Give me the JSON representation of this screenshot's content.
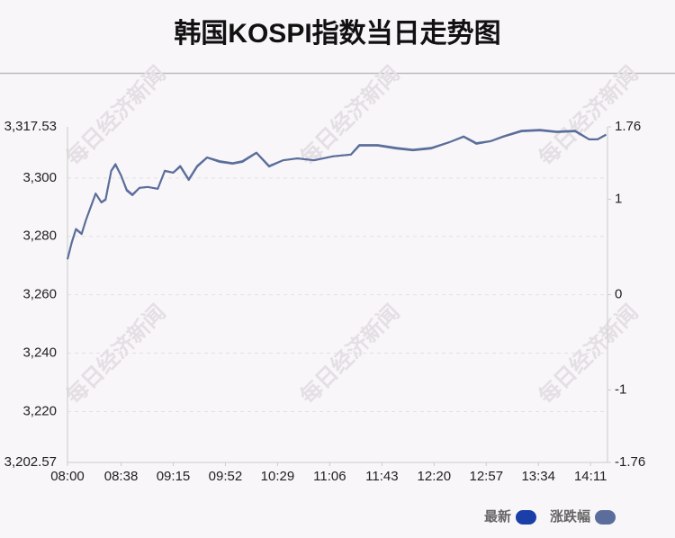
{
  "chart_data": {
    "type": "line",
    "title": "韩国KOSPI指数当日走势图",
    "watermark": "每日经济新闻",
    "x": [
      "08:00",
      "08:03",
      "08:06",
      "08:10",
      "08:13",
      "08:16",
      "08:20",
      "08:24",
      "08:27",
      "08:31",
      "08:34",
      "08:38",
      "08:42",
      "08:46",
      "08:51",
      "08:57",
      "09:04",
      "09:09",
      "09:15",
      "09:20",
      "09:26",
      "09:32",
      "09:39",
      "09:48",
      "09:57",
      "10:04",
      "10:14",
      "10:23",
      "10:33",
      "10:43",
      "10:55",
      "11:08",
      "11:21",
      "11:27",
      "11:40",
      "11:53",
      "12:05",
      "12:18",
      "12:31",
      "12:41",
      "12:50",
      "13:00",
      "13:09",
      "13:22",
      "13:35",
      "13:47",
      "14:00",
      "14:10",
      "14:16",
      "14:22"
    ],
    "xlim": [
      "08:00",
      "14:23"
    ],
    "xticks": [
      "08:00",
      "08:38",
      "09:15",
      "09:52",
      "10:29",
      "11:06",
      "11:43",
      "12:20",
      "12:57",
      "13:34",
      "14:11"
    ],
    "ylim": [
      3202.57,
      3317.53
    ],
    "yticks": [
      {
        "value": 3317.53,
        "label": "3,317.53"
      },
      {
        "value": 3300,
        "label": "3,300"
      },
      {
        "value": 3280,
        "label": "3,280"
      },
      {
        "value": 3260,
        "label": "3,260"
      },
      {
        "value": 3240,
        "label": "3,240"
      },
      {
        "value": 3220,
        "label": "3,220"
      },
      {
        "value": 3202.57,
        "label": "3,202.57"
      }
    ],
    "y2lim": [
      -1.76,
      1.76
    ],
    "y2ticks": [
      1.76,
      1,
      0,
      -1,
      -1.76
    ],
    "grid": true,
    "legend": "bottom-right",
    "series": [
      {
        "name": "最新",
        "color": "#1a3fa8",
        "line_color": "#5b6e9b",
        "values": [
          3272.2,
          3277.8,
          3282.4,
          3280.8,
          3285.5,
          3289.5,
          3294.7,
          3291.6,
          3292.5,
          3302.4,
          3304.5,
          3300.9,
          3295.7,
          3294.1,
          3296.6,
          3296.9,
          3296.3,
          3302.4,
          3301.8,
          3303.9,
          3299.3,
          3303.9,
          3307.0,
          3305.5,
          3304.9,
          3305.5,
          3308.6,
          3303.9,
          3306.1,
          3306.7,
          3306.1,
          3307.4,
          3308.0,
          3311.1,
          3311.1,
          3310.1,
          3309.5,
          3310.1,
          3312.3,
          3314.1,
          3311.7,
          3312.6,
          3314.1,
          3316.0,
          3316.3,
          3315.7,
          3316.0,
          3313.2,
          3313.2,
          3314.8
        ]
      },
      {
        "name": "涨跌幅",
        "color": "#5b6e9b",
        "axis": "y2",
        "values": [
          0.37,
          0.55,
          0.69,
          0.64,
          0.78,
          0.9,
          1.06,
          0.97,
          1.0,
          1.3,
          1.37,
          1.25,
          1.1,
          1.05,
          1.12,
          1.13,
          1.11,
          1.3,
          1.28,
          1.35,
          1.21,
          1.35,
          1.44,
          1.4,
          1.38,
          1.4,
          1.49,
          1.35,
          1.41,
          1.43,
          1.41,
          1.45,
          1.47,
          1.57,
          1.57,
          1.54,
          1.52,
          1.54,
          1.6,
          1.66,
          1.59,
          1.61,
          1.66,
          1.72,
          1.73,
          1.71,
          1.72,
          1.63,
          1.63,
          1.68
        ]
      }
    ]
  }
}
